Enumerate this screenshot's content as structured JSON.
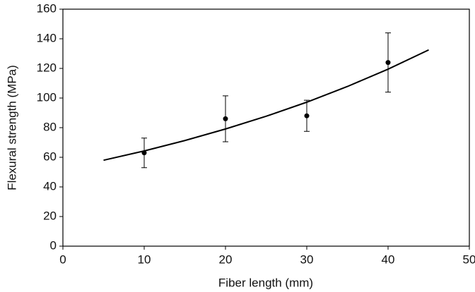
{
  "chart_data": {
    "type": "scatter",
    "xlabel": "Fiber length (mm)",
    "ylabel": "Flexural strength (MPa)",
    "xlim": [
      0,
      50
    ],
    "xticks": [
      0,
      10,
      20,
      30,
      40,
      50
    ],
    "ylim": [
      0,
      160
    ],
    "yticks": [
      0,
      20,
      40,
      60,
      80,
      100,
      120,
      140,
      160
    ],
    "series": [
      {
        "style": "markers",
        "color": "#000000",
        "x": [
          10,
          20,
          30,
          40
        ],
        "values": [
          63,
          86,
          88,
          124
        ],
        "errors": [
          10,
          15.5,
          10.5,
          20
        ]
      },
      {
        "style": "line",
        "color": "#000000",
        "x": [
          5,
          10,
          15,
          20,
          25,
          30,
          35,
          40,
          45
        ],
        "values": [
          58,
          64.3,
          71.3,
          79.1,
          87.7,
          97.2,
          107.8,
          119.5,
          132.5
        ]
      }
    ]
  }
}
